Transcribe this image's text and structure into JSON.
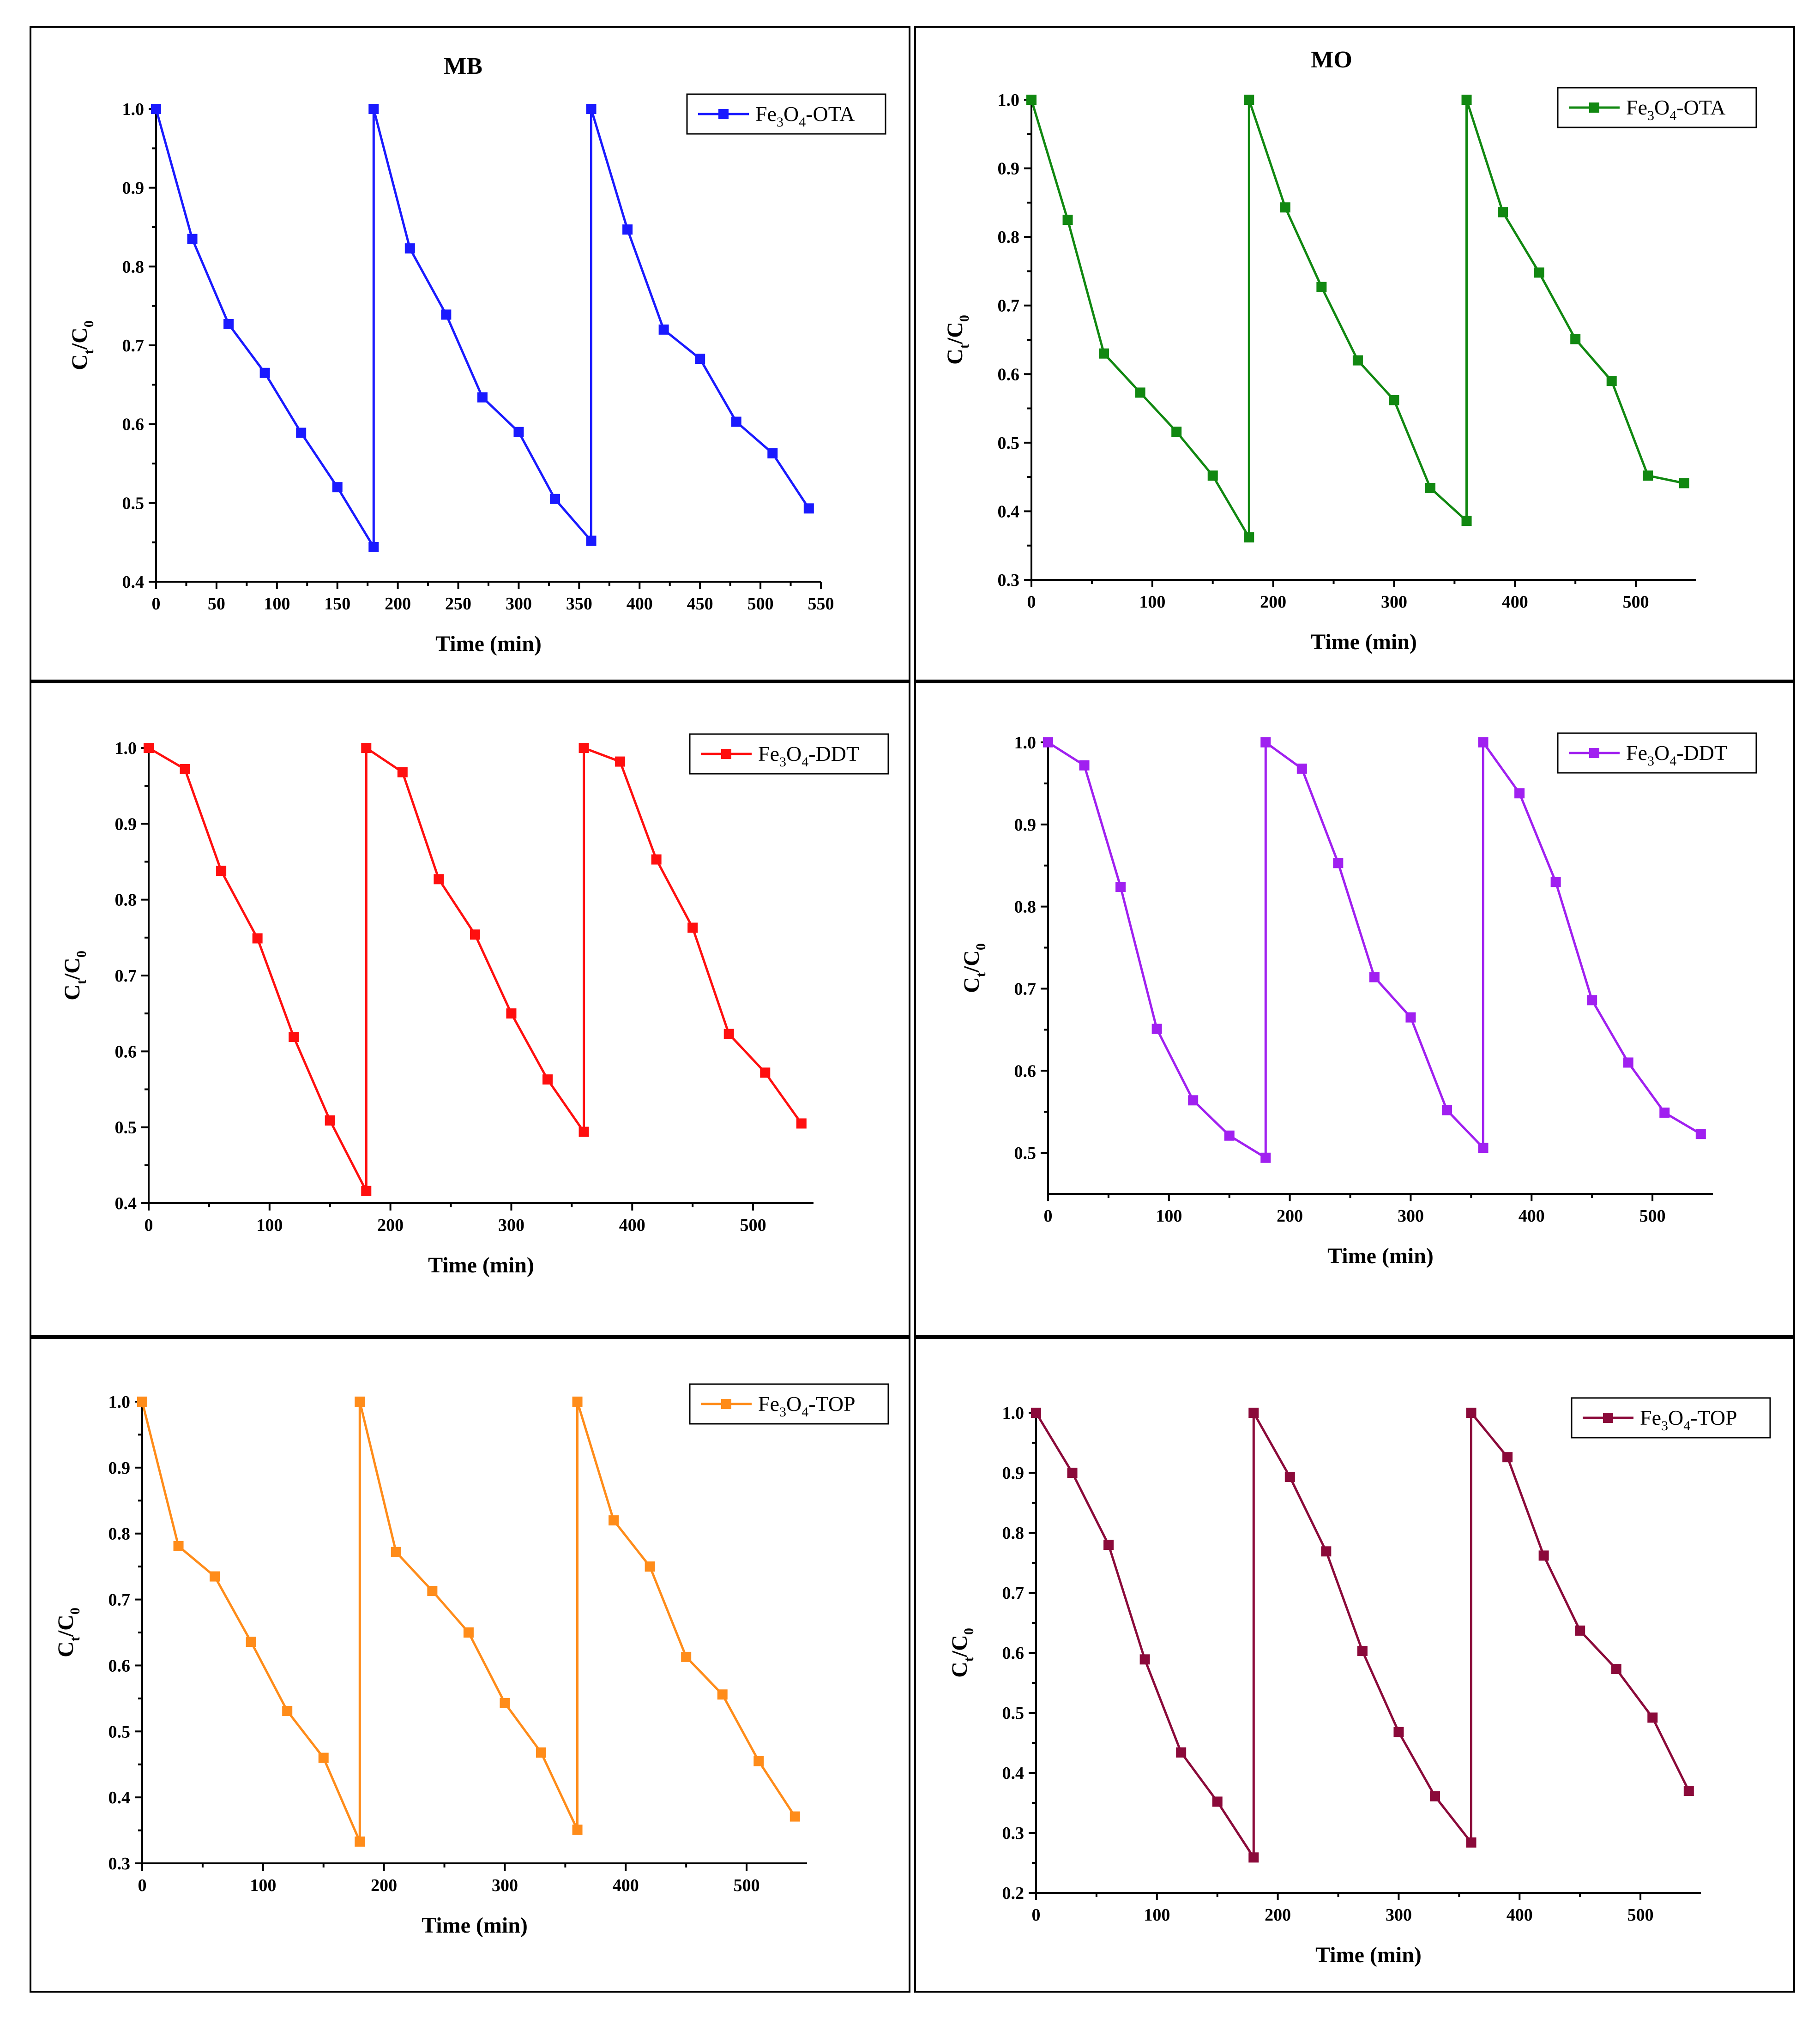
{
  "chart_data": [
    {
      "type": "line",
      "title": "MB",
      "xlabel": "Time (min)",
      "ylabel_main": "C",
      "ylabel_sub1": "t",
      "ylabel_mid": "/C",
      "ylabel_sub2": "0",
      "xlim": [
        0,
        550
      ],
      "xticks": [
        0,
        50,
        100,
        150,
        200,
        250,
        300,
        350,
        400,
        450,
        500,
        550
      ],
      "ylim": [
        0.4,
        1.0
      ],
      "yticks": [
        0.4,
        0.5,
        0.6,
        0.7,
        0.8,
        0.9,
        1.0
      ],
      "series": [
        {
          "name": "Fe3O4-OTA",
          "legend_parts": [
            "Fe",
            "3",
            "O",
            "4",
            "-OTA"
          ],
          "color": "#1a1aff",
          "x": [
            0,
            30,
            60,
            90,
            120,
            150,
            180,
            180,
            210,
            240,
            270,
            300,
            330,
            360,
            360,
            390,
            420,
            450,
            480,
            510,
            540
          ],
          "y": [
            1.0,
            0.835,
            0.727,
            0.665,
            0.589,
            0.52,
            0.444,
            1.0,
            0.823,
            0.739,
            0.634,
            0.59,
            0.505,
            0.452,
            1.0,
            0.847,
            0.72,
            0.683,
            0.603,
            0.563,
            0.493
          ]
        }
      ]
    },
    {
      "type": "line",
      "title": "MO",
      "xlabel": "Time (min)",
      "ylabel_main": "C",
      "ylabel_sub1": "t",
      "ylabel_mid": "/C",
      "ylabel_sub2": "0",
      "xlim": [
        0,
        550
      ],
      "xticks": [
        0,
        100,
        200,
        300,
        400,
        500
      ],
      "ylim": [
        0.3,
        1.0
      ],
      "yticks": [
        0.3,
        0.4,
        0.5,
        0.6,
        0.7,
        0.8,
        0.9,
        1.0
      ],
      "series": [
        {
          "name": "Fe3O4-OTA",
          "legend_parts": [
            "Fe",
            "3",
            "O",
            "4",
            "-OTA"
          ],
          "color": "#118811",
          "x": [
            0,
            30,
            60,
            90,
            120,
            150,
            180,
            180,
            210,
            240,
            270,
            300,
            330,
            360,
            360,
            390,
            420,
            450,
            480,
            510,
            540
          ],
          "y": [
            1.0,
            0.825,
            0.63,
            0.573,
            0.516,
            0.452,
            0.362,
            1.0,
            0.843,
            0.727,
            0.62,
            0.562,
            0.434,
            0.386,
            1.0,
            0.836,
            0.748,
            0.651,
            0.59,
            0.452,
            0.441
          ]
        }
      ]
    },
    {
      "type": "line",
      "title": "",
      "xlabel": "Time (min)",
      "ylabel_main": "C",
      "ylabel_sub1": "t",
      "ylabel_mid": "/C",
      "ylabel_sub2": "0",
      "xlim": [
        0,
        550
      ],
      "xticks": [
        0,
        100,
        200,
        300,
        400,
        500
      ],
      "ylim": [
        0.4,
        1.0
      ],
      "yticks": [
        0.4,
        0.5,
        0.6,
        0.7,
        0.8,
        0.9,
        1.0
      ],
      "series": [
        {
          "name": "Fe3O4-DDT",
          "legend_parts": [
            "Fe",
            "3",
            "O",
            "4",
            "-DDT"
          ],
          "color": "#ff0f0f",
          "x": [
            0,
            30,
            60,
            90,
            120,
            150,
            180,
            180,
            210,
            240,
            270,
            300,
            330,
            360,
            360,
            390,
            420,
            450,
            480,
            510,
            540
          ],
          "y": [
            1.0,
            0.972,
            0.838,
            0.749,
            0.619,
            0.509,
            0.416,
            1.0,
            0.968,
            0.827,
            0.754,
            0.65,
            0.563,
            0.494,
            1.0,
            0.982,
            0.853,
            0.763,
            0.623,
            0.572,
            0.505
          ]
        }
      ]
    },
    {
      "type": "line",
      "title": "",
      "xlabel": "Time (min)",
      "ylabel_main": "C",
      "ylabel_sub1": "t",
      "ylabel_mid": "/C",
      "ylabel_sub2": "0",
      "xlim": [
        0,
        550
      ],
      "xticks": [
        0,
        100,
        200,
        300,
        400,
        500
      ],
      "ylim": [
        0.45,
        1.0
      ],
      "yticks": [
        0.5,
        0.6,
        0.7,
        0.8,
        0.9,
        1.0
      ],
      "series": [
        {
          "name": "Fe3O4-DDT",
          "legend_parts": [
            "Fe",
            "3",
            "O",
            "4",
            "-DDT"
          ],
          "color": "#a020f0",
          "x": [
            0,
            30,
            60,
            90,
            120,
            150,
            180,
            180,
            210,
            240,
            270,
            300,
            330,
            360,
            360,
            390,
            420,
            450,
            480,
            510,
            540
          ],
          "y": [
            1.0,
            0.972,
            0.824,
            0.651,
            0.564,
            0.521,
            0.494,
            1.0,
            0.968,
            0.853,
            0.714,
            0.665,
            0.552,
            0.506,
            1.0,
            0.938,
            0.83,
            0.686,
            0.61,
            0.549,
            0.523
          ]
        }
      ]
    },
    {
      "type": "line",
      "title": "",
      "xlabel": "Time (min)",
      "ylabel_main": "C",
      "ylabel_sub1": "t",
      "ylabel_mid": "/C",
      "ylabel_sub2": "0",
      "xlim": [
        0,
        550
      ],
      "xticks": [
        0,
        100,
        200,
        300,
        400,
        500
      ],
      "ylim": [
        0.3,
        1.0
      ],
      "yticks": [
        0.3,
        0.4,
        0.5,
        0.6,
        0.7,
        0.8,
        0.9,
        1.0
      ],
      "series": [
        {
          "name": "Fe3O4-TOP",
          "legend_parts": [
            "Fe",
            "3",
            "O",
            "4",
            "-TOP"
          ],
          "color": "#ff8c1a",
          "x": [
            0,
            30,
            60,
            90,
            120,
            150,
            180,
            180,
            210,
            240,
            270,
            300,
            330,
            360,
            360,
            390,
            420,
            450,
            480,
            510,
            540
          ],
          "y": [
            1.0,
            0.781,
            0.735,
            0.636,
            0.531,
            0.46,
            0.333,
            1.0,
            0.772,
            0.713,
            0.65,
            0.543,
            0.468,
            0.351,
            1.0,
            0.82,
            0.75,
            0.613,
            0.556,
            0.455,
            0.371
          ]
        }
      ]
    },
    {
      "type": "line",
      "title": "",
      "xlabel": "Time (min)",
      "ylabel_main": "C",
      "ylabel_sub1": "t",
      "ylabel_mid": "/C",
      "ylabel_sub2": "0",
      "xlim": [
        0,
        550
      ],
      "xticks": [
        0,
        100,
        200,
        300,
        400,
        500
      ],
      "ylim": [
        0.2,
        1.0
      ],
      "yticks": [
        0.2,
        0.3,
        0.4,
        0.5,
        0.6,
        0.7,
        0.8,
        0.9,
        1.0
      ],
      "series": [
        {
          "name": "Fe3O4-TOP",
          "legend_parts": [
            "Fe",
            "3",
            "O",
            "4",
            "-TOP"
          ],
          "color": "#8b0a3a",
          "x": [
            0,
            30,
            60,
            90,
            120,
            150,
            180,
            180,
            210,
            240,
            270,
            300,
            330,
            360,
            360,
            390,
            420,
            450,
            480,
            510,
            540
          ],
          "y": [
            1.0,
            0.9,
            0.78,
            0.589,
            0.434,
            0.352,
            0.259,
            1.0,
            0.893,
            0.769,
            0.603,
            0.468,
            0.361,
            0.284,
            1.0,
            0.926,
            0.762,
            0.637,
            0.573,
            0.492,
            0.37
          ]
        }
      ]
    }
  ]
}
